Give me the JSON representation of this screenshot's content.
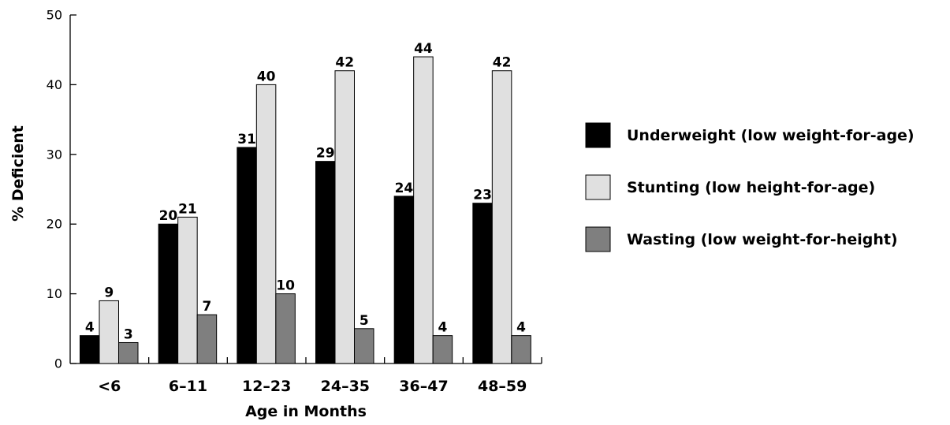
{
  "chart_data": {
    "type": "bar",
    "title": "",
    "xlabel": "Age in Months",
    "ylabel": "% Deficient",
    "ylim": [
      0,
      50
    ],
    "yticks": [
      0,
      10,
      20,
      30,
      40,
      50
    ],
    "grid": false,
    "legend_position": "right",
    "categories": [
      "<6",
      "6–11",
      "12–23",
      "24–35",
      "36–47",
      "48–59"
    ],
    "series": [
      {
        "name": "Underweight (low weight-for-age)",
        "color": "#000000",
        "values": [
          4,
          20,
          31,
          29,
          24,
          23
        ]
      },
      {
        "name": "Stunting (low height-for-age)",
        "color": "#e0e0e0",
        "values": [
          9,
          21,
          40,
          42,
          44,
          42
        ]
      },
      {
        "name": "Wasting (low weight-for-height)",
        "color": "#7f7f7f",
        "values": [
          3,
          7,
          10,
          5,
          4,
          4
        ]
      }
    ]
  }
}
